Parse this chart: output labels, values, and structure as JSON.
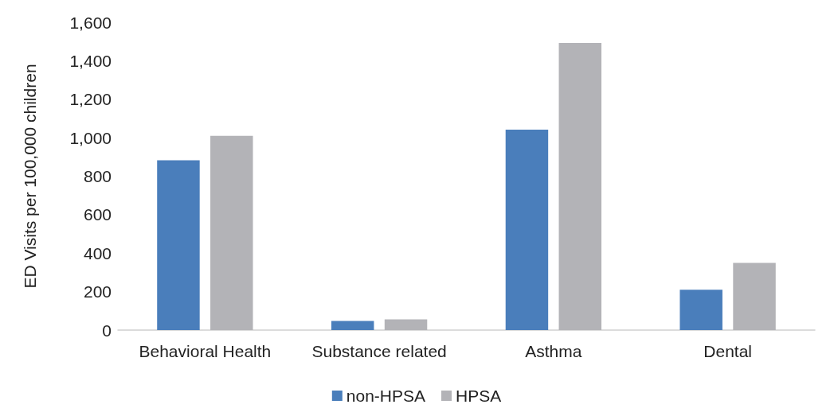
{
  "chart_data": {
    "type": "bar",
    "ylabel": "ED Visits per 100,000 children",
    "categories": [
      "Behavioral Health",
      "Substance related",
      "Asthma",
      "Dental"
    ],
    "series": [
      {
        "name": "non-HPSA",
        "color": "#4a7ebb",
        "values": [
          883,
          48,
          1042,
          210
        ]
      },
      {
        "name": "HPSA",
        "color": "#b3b3b7",
        "values": [
          1010,
          56,
          1493,
          349
        ]
      }
    ],
    "ylim": [
      0,
      1600
    ],
    "yticks": [
      0,
      200,
      400,
      600,
      800,
      {
        "value": 1000,
        "label": "1,000"
      },
      {
        "value": 1200,
        "label": "1,200"
      },
      {
        "value": 1400,
        "label": "1,400"
      },
      {
        "value": 1600,
        "label": "1,600"
      }
    ],
    "grid": false,
    "legend": "bottom"
  }
}
